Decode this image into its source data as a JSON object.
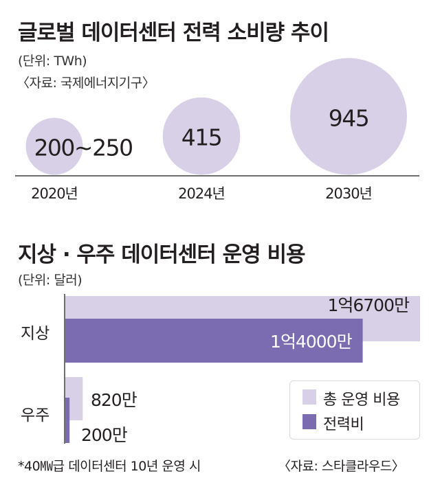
{
  "colors": {
    "light": "#d8d0e7",
    "dark": "#7b6bb0",
    "axis": "#6e6e6e"
  },
  "chart_data": [
    {
      "type": "bubble",
      "title": "글로벌 데이터센터 전력 소비량 추이",
      "unit": "(단위: TWh)",
      "source": "〈자료: 국제에너지기구〉",
      "categories": [
        "2020년",
        "2024년",
        "2030년"
      ],
      "labels": [
        "200∼250",
        "415",
        "945"
      ],
      "values": [
        225,
        415,
        945
      ]
    },
    {
      "type": "bar",
      "title": "지상 · 우주 데이터센터 운영 비용",
      "unit": "(단위: 달러)",
      "categories": [
        "지상",
        "우주"
      ],
      "series": [
        {
          "name": "총 운영 비용",
          "values": [
            167000000,
            8200000
          ],
          "labels": [
            "1억6700만",
            "820만"
          ]
        },
        {
          "name": "전력비",
          "values": [
            140000000,
            2000000
          ],
          "labels": [
            "1억4000만",
            "200만"
          ]
        }
      ],
      "note": "*40㎿급 데이터센터 10년 운영 시",
      "source": "〈자료: 스타클라우드〉"
    }
  ]
}
